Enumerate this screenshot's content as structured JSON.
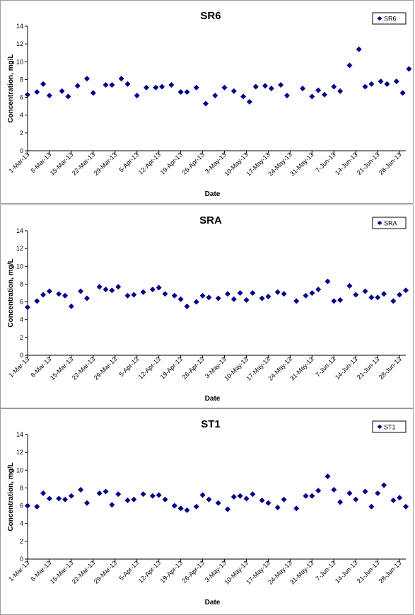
{
  "chart_data": [
    {
      "type": "scatter",
      "title": "SR6",
      "xlabel": "Date",
      "ylabel": "Concentration, mg/L",
      "ylim": [
        0,
        14
      ],
      "yticks": [
        "0",
        "2",
        "4",
        "6",
        "8",
        "10",
        "12",
        "14"
      ],
      "xlim": [
        "2013-03-01",
        "2013-06-30"
      ],
      "xtick_dates": [
        "2013-03-01",
        "2013-03-08",
        "2013-03-15",
        "2013-03-22",
        "2013-03-29",
        "2013-04-05",
        "2013-04-12",
        "2013-04-19",
        "2013-04-26",
        "2013-05-03",
        "2013-05-10",
        "2013-05-17",
        "2013-05-24",
        "2013-05-31",
        "2013-06-07",
        "2013-06-14",
        "2013-06-21",
        "2013-06-28"
      ],
      "xtick_labels": [
        "1-Mar-13",
        "8-Mar-13",
        "15-Mar-13",
        "22-Mar-13",
        "29-Mar-13",
        "5-Apr-13",
        "12-Apr-13",
        "19-Apr-13",
        "26-Apr-13",
        "3-May-13",
        "10-May-13",
        "17-May-13",
        "24-May-13",
        "31-May-13",
        "7-Jun-13",
        "14-Jun-13",
        "21-Jun-13",
        "28-Jun-13"
      ],
      "legend": {
        "position": "top-right",
        "entries": [
          "SR6"
        ]
      },
      "grid": false,
      "marker_color": "#00008b",
      "series": [
        {
          "name": "SR6",
          "x": [
            "2013-03-01",
            "2013-03-04",
            "2013-03-06",
            "2013-03-08",
            "2013-03-12",
            "2013-03-14",
            "2013-03-17",
            "2013-03-20",
            "2013-03-22",
            "2013-03-26",
            "2013-03-28",
            "2013-03-31",
            "2013-04-02",
            "2013-04-05",
            "2013-04-08",
            "2013-04-11",
            "2013-04-13",
            "2013-04-16",
            "2013-04-19",
            "2013-04-21",
            "2013-04-24",
            "2013-04-27",
            "2013-04-30",
            "2013-05-03",
            "2013-05-06",
            "2013-05-09",
            "2013-05-11",
            "2013-05-13",
            "2013-05-16",
            "2013-05-18",
            "2013-05-21",
            "2013-05-23",
            "2013-05-28",
            "2013-05-31",
            "2013-06-02",
            "2013-06-04",
            "2013-06-07",
            "2013-06-09",
            "2013-06-12",
            "2013-06-15",
            "2013-06-17",
            "2013-06-19",
            "2013-06-22",
            "2013-06-24",
            "2013-06-27",
            "2013-06-29",
            "2013-07-01"
          ],
          "y": [
            6.3,
            6.6,
            7.5,
            6.2,
            6.7,
            6.1,
            7.3,
            8.1,
            6.5,
            7.4,
            7.4,
            8.1,
            7.5,
            6.2,
            7.1,
            7.1,
            7.2,
            7.4,
            6.6,
            6.6,
            7.1,
            5.3,
            6.2,
            7.1,
            6.7,
            6.1,
            5.5,
            7.2,
            7.3,
            7.0,
            7.4,
            6.2,
            7.0,
            6.1,
            6.8,
            6.3,
            7.2,
            6.7,
            9.6,
            11.4,
            7.2,
            7.5,
            7.8,
            7.5,
            7.8,
            6.5,
            9.2
          ]
        }
      ]
    },
    {
      "type": "scatter",
      "title": "SRA",
      "xlabel": "Date",
      "ylabel": "Concentration, mg/L",
      "ylim": [
        0,
        14
      ],
      "yticks": [
        "0",
        "2",
        "4",
        "6",
        "8",
        "10",
        "12",
        "14"
      ],
      "xlim": [
        "2013-03-01",
        "2013-06-30"
      ],
      "xtick_dates": [
        "2013-03-01",
        "2013-03-08",
        "2013-03-15",
        "2013-03-22",
        "2013-03-29",
        "2013-04-05",
        "2013-04-12",
        "2013-04-19",
        "2013-04-26",
        "2013-05-03",
        "2013-05-10",
        "2013-05-17",
        "2013-05-24",
        "2013-05-31",
        "2013-06-07",
        "2013-06-14",
        "2013-06-21",
        "2013-06-28"
      ],
      "xtick_labels": [
        "1-Mar-13",
        "8-Mar-13",
        "15-Mar-13",
        "22-Mar-13",
        "29-Mar-13",
        "5-Apr-13",
        "12-Apr-13",
        "19-Apr-13",
        "26-Apr-13",
        "3-May-13",
        "10-May-13",
        "17-May-13",
        "24-May-13",
        "31-May-13",
        "7-Jun-13",
        "14-Jun-13",
        "21-Jun-13",
        "28-Jun-13"
      ],
      "legend": {
        "position": "top-right",
        "entries": [
          "SRA"
        ]
      },
      "grid": false,
      "marker_color": "#00008b",
      "series": [
        {
          "name": "SRA",
          "x": [
            "2013-03-01",
            "2013-03-04",
            "2013-03-06",
            "2013-03-08",
            "2013-03-11",
            "2013-03-13",
            "2013-03-15",
            "2013-03-18",
            "2013-03-20",
            "2013-03-24",
            "2013-03-26",
            "2013-03-28",
            "2013-03-30",
            "2013-04-02",
            "2013-04-04",
            "2013-04-07",
            "2013-04-10",
            "2013-04-12",
            "2013-04-14",
            "2013-04-17",
            "2013-04-19",
            "2013-04-21",
            "2013-04-24",
            "2013-04-26",
            "2013-04-28",
            "2013-05-01",
            "2013-05-04",
            "2013-05-06",
            "2013-05-08",
            "2013-05-10",
            "2013-05-12",
            "2013-05-15",
            "2013-05-17",
            "2013-05-20",
            "2013-05-22",
            "2013-05-26",
            "2013-05-29",
            "2013-05-31",
            "2013-06-02",
            "2013-06-05",
            "2013-06-07",
            "2013-06-09",
            "2013-06-12",
            "2013-06-14",
            "2013-06-17",
            "2013-06-19",
            "2013-06-21",
            "2013-06-23",
            "2013-06-26",
            "2013-06-28",
            "2013-06-30"
          ],
          "y": [
            5.4,
            6.1,
            6.8,
            7.2,
            6.9,
            6.7,
            5.5,
            7.2,
            6.4,
            7.7,
            7.4,
            7.3,
            7.7,
            6.7,
            6.8,
            7.1,
            7.4,
            7.6,
            6.9,
            6.7,
            6.3,
            5.5,
            6.0,
            6.7,
            6.5,
            6.4,
            6.9,
            6.3,
            7.0,
            6.2,
            7.0,
            6.4,
            6.6,
            7.1,
            6.9,
            6.1,
            6.7,
            7.0,
            7.4,
            8.3,
            6.1,
            6.2,
            7.8,
            6.8,
            7.2,
            6.5,
            6.5,
            6.9,
            6.1,
            6.8,
            7.3
          ]
        }
      ]
    },
    {
      "type": "scatter",
      "title": "ST1",
      "xlabel": "Date",
      "ylabel": "Concentration, mg/L",
      "ylim": [
        0,
        14
      ],
      "yticks": [
        "0",
        "2",
        "4",
        "6",
        "8",
        "10",
        "12",
        "14"
      ],
      "xlim": [
        "2013-03-01",
        "2013-06-30"
      ],
      "xtick_dates": [
        "2013-03-01",
        "2013-03-08",
        "2013-03-15",
        "2013-03-22",
        "2013-03-29",
        "2013-04-05",
        "2013-04-12",
        "2013-04-19",
        "2013-04-26",
        "2013-05-03",
        "2013-05-10",
        "2013-05-17",
        "2013-05-24",
        "2013-05-31",
        "2013-06-07",
        "2013-06-14",
        "2013-06-21",
        "2013-06-28"
      ],
      "xtick_labels": [
        "1-Mar-13",
        "8-Mar-13",
        "15-Mar-13",
        "22-Mar-13",
        "29-Mar-13",
        "5-Apr-13",
        "12-Apr-13",
        "19-Apr-13",
        "26-Apr-13",
        "3-May-13",
        "10-May-13",
        "17-May-13",
        "24-May-13",
        "31-May-13",
        "7-Jun-13",
        "14-Jun-13",
        "21-Jun-13",
        "28-Jun-13"
      ],
      "legend": {
        "position": "top-right",
        "entries": [
          "ST1"
        ]
      },
      "grid": false,
      "marker_color": "#00008b",
      "series": [
        {
          "name": "ST1",
          "x": [
            "2013-03-01",
            "2013-03-04",
            "2013-03-06",
            "2013-03-08",
            "2013-03-11",
            "2013-03-13",
            "2013-03-15",
            "2013-03-18",
            "2013-03-20",
            "2013-03-24",
            "2013-03-26",
            "2013-03-28",
            "2013-03-30",
            "2013-04-02",
            "2013-04-04",
            "2013-04-07",
            "2013-04-10",
            "2013-04-12",
            "2013-04-14",
            "2013-04-17",
            "2013-04-19",
            "2013-04-21",
            "2013-04-24",
            "2013-04-26",
            "2013-04-28",
            "2013-05-01",
            "2013-05-04",
            "2013-05-06",
            "2013-05-08",
            "2013-05-10",
            "2013-05-12",
            "2013-05-15",
            "2013-05-17",
            "2013-05-20",
            "2013-05-22",
            "2013-05-26",
            "2013-05-29",
            "2013-05-31",
            "2013-06-02",
            "2013-06-05",
            "2013-06-07",
            "2013-06-09",
            "2013-06-12",
            "2013-06-14",
            "2013-06-17",
            "2013-06-19",
            "2013-06-21",
            "2013-06-23",
            "2013-06-26",
            "2013-06-28",
            "2013-06-30"
          ],
          "y": [
            6.0,
            5.9,
            7.4,
            6.8,
            6.8,
            6.7,
            7.1,
            7.8,
            6.3,
            7.4,
            7.6,
            6.1,
            7.3,
            6.6,
            6.7,
            7.3,
            7.1,
            7.2,
            6.7,
            6.0,
            5.7,
            5.5,
            5.9,
            7.2,
            6.7,
            6.3,
            5.6,
            7.0,
            7.1,
            6.8,
            7.3,
            6.6,
            6.3,
            5.8,
            6.7,
            5.7,
            7.1,
            7.1,
            7.7,
            9.3,
            7.8,
            6.4,
            7.4,
            6.7,
            7.6,
            5.9,
            7.4,
            8.3,
            6.6,
            6.9,
            5.9
          ]
        }
      ]
    }
  ]
}
